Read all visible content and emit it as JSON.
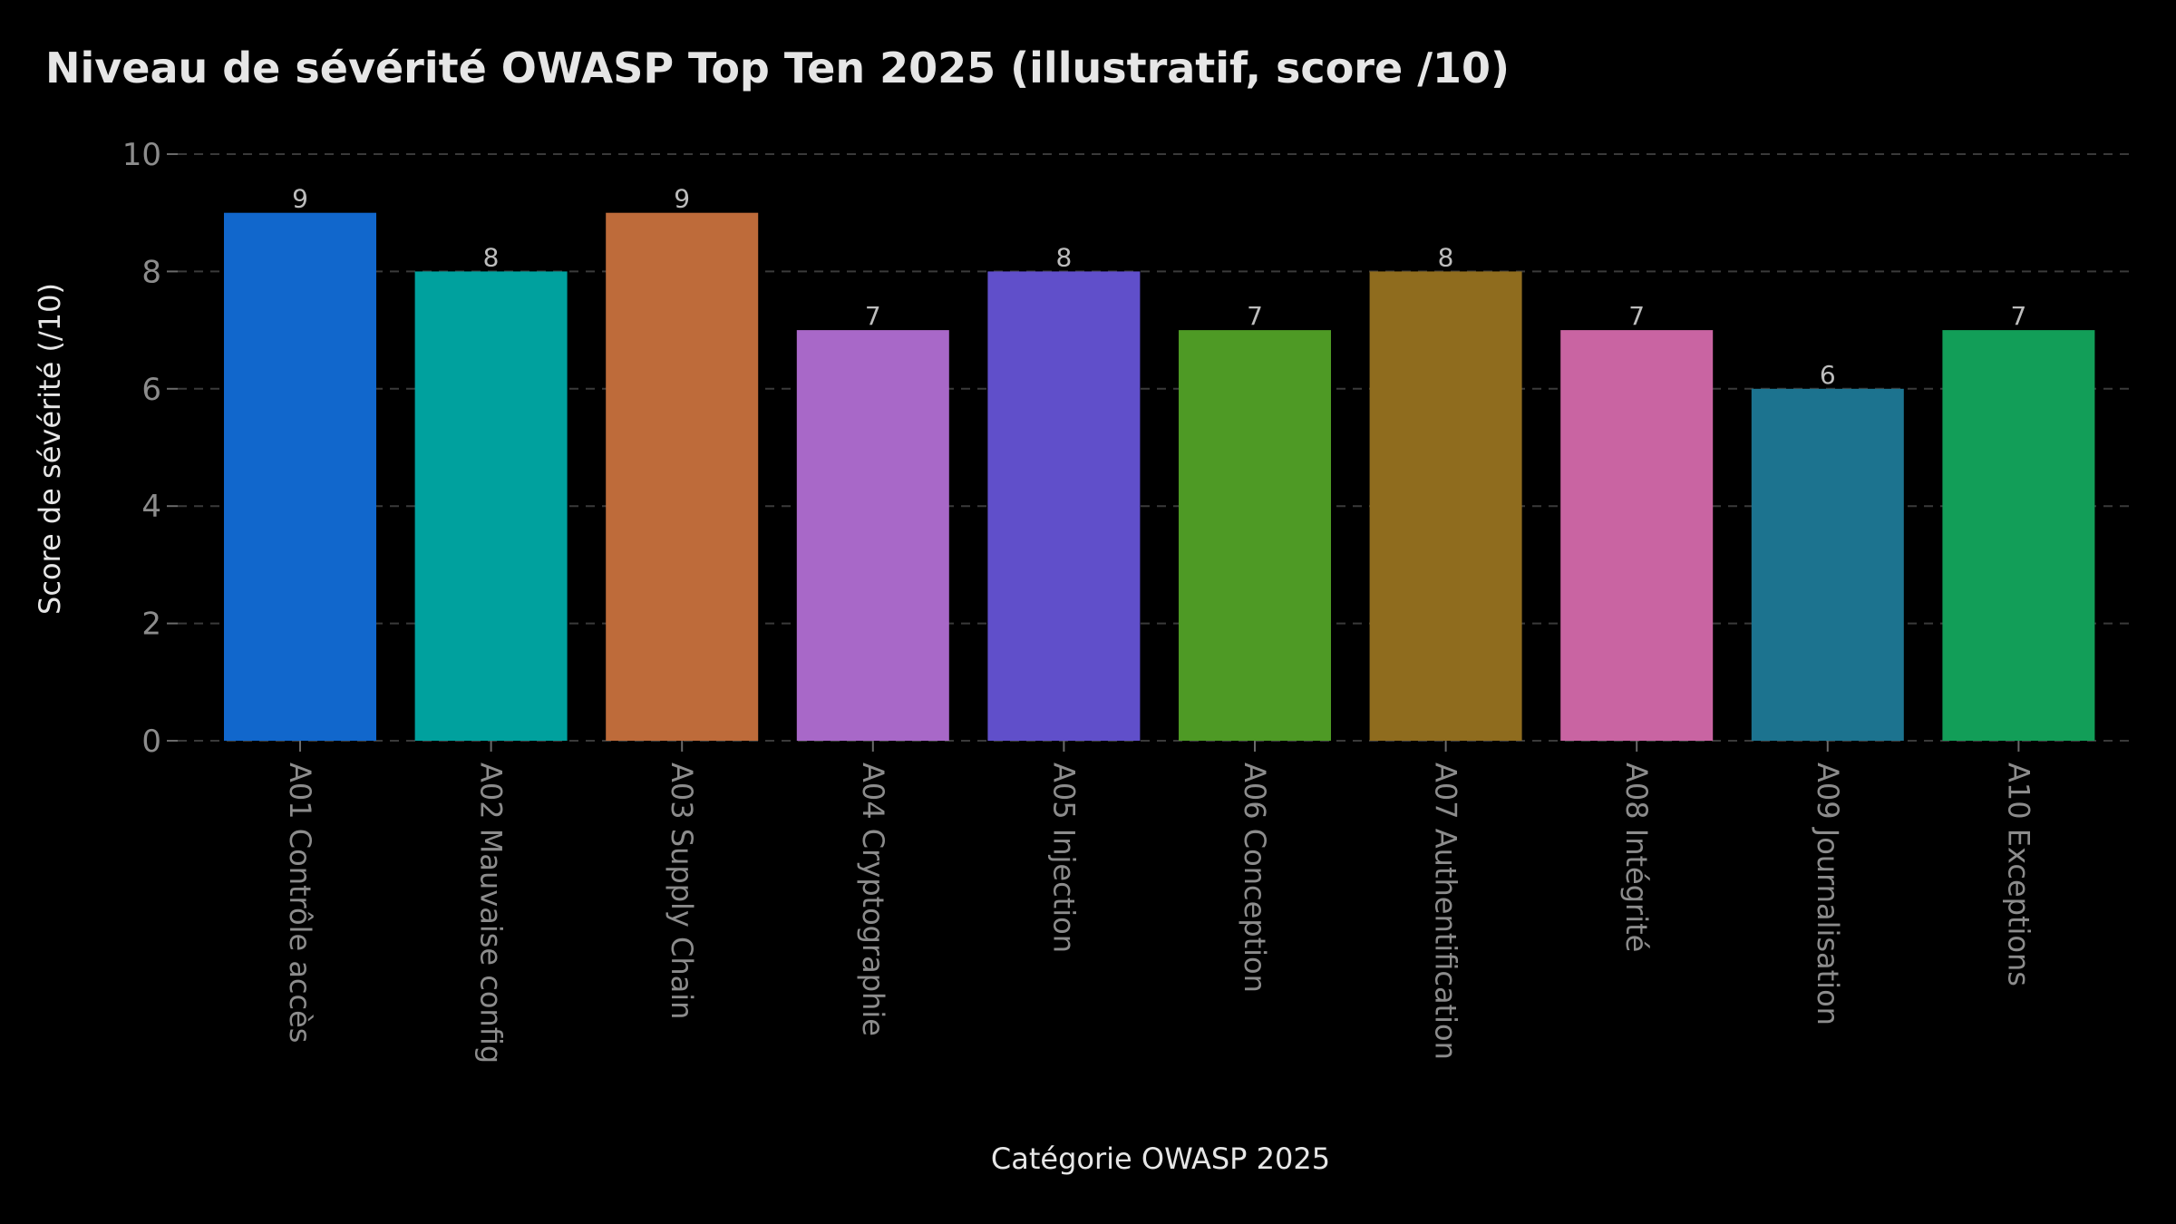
{
  "chart_data": {
    "type": "bar",
    "title": "Niveau de sévérité OWASP Top Ten 2025 (illustratif, score /10)",
    "xlabel": "Catégorie OWASP 2025",
    "ylabel": "Score de sévérité (/10)",
    "categories": [
      "A01 Contrôle accès",
      "A02 Mauvaise config",
      "A03 Supply Chain",
      "A04 Cryptographie",
      "A05 Injection",
      "A06 Conception",
      "A07 Authentification",
      "A08 Intégrité",
      "A09 Journalisation",
      "A10 Exceptions"
    ],
    "values": [
      9,
      8,
      9,
      7,
      8,
      7,
      8,
      7,
      6,
      7
    ],
    "colors": [
      "#1167cc",
      "#00a19e",
      "#be6b3a",
      "#a868c8",
      "#604fca",
      "#4e9a25",
      "#8f6c1e",
      "#c964a2",
      "#1c738f",
      "#129e58"
    ],
    "ylim": [
      0,
      10
    ],
    "yticks": [
      0,
      2,
      4,
      6,
      8,
      10
    ],
    "grid": true,
    "data_labels": true
  }
}
